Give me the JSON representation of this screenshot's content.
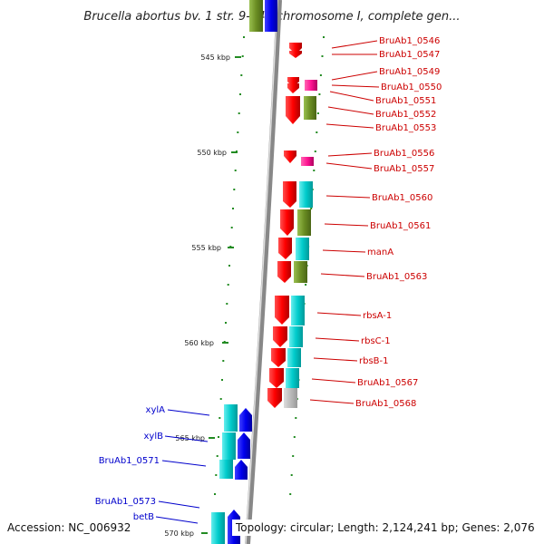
{
  "title": "Brucella abortus bv. 1 str. 9-941 chromosome I, complete gen...",
  "accession": "Accession: NC_006932",
  "topology": "Topology: circular; Length: 2,124,241 bp; Genes: 2,076",
  "ticks": [
    "545 kbp",
    "550 kbp",
    "555 kbp",
    "560 kbp",
    "565 kbp",
    "570 kbp"
  ],
  "genes_right": [
    "BruAb1_0546",
    "BruAb1_0547",
    "BruAb1_0549",
    "BruAb1_0550",
    "BruAb1_0551",
    "BruAb1_0552",
    "BruAb1_0553",
    "BruAb1_0556",
    "BruAb1_0557",
    "BruAb1_0560",
    "BruAb1_0561",
    "manA",
    "BruAb1_0563",
    "rbsA-1",
    "rbsC-1",
    "rbsB-1",
    "BruAb1_0567",
    "BruAb1_0568"
  ],
  "genes_left": [
    "xylA",
    "xylB",
    "BruAb1_0571",
    "BruAb1_0573",
    "betB"
  ],
  "colors": {
    "forward_gene": "#ff0000",
    "reverse_gene": "#0000ff",
    "cog_cyan": "#00cccc",
    "cog_olive": "#6b8e23",
    "cog_pink": "#ff1493",
    "cog_gray": "#bbbbbb",
    "backbone": "#888888",
    "tick": "#228b22"
  }
}
